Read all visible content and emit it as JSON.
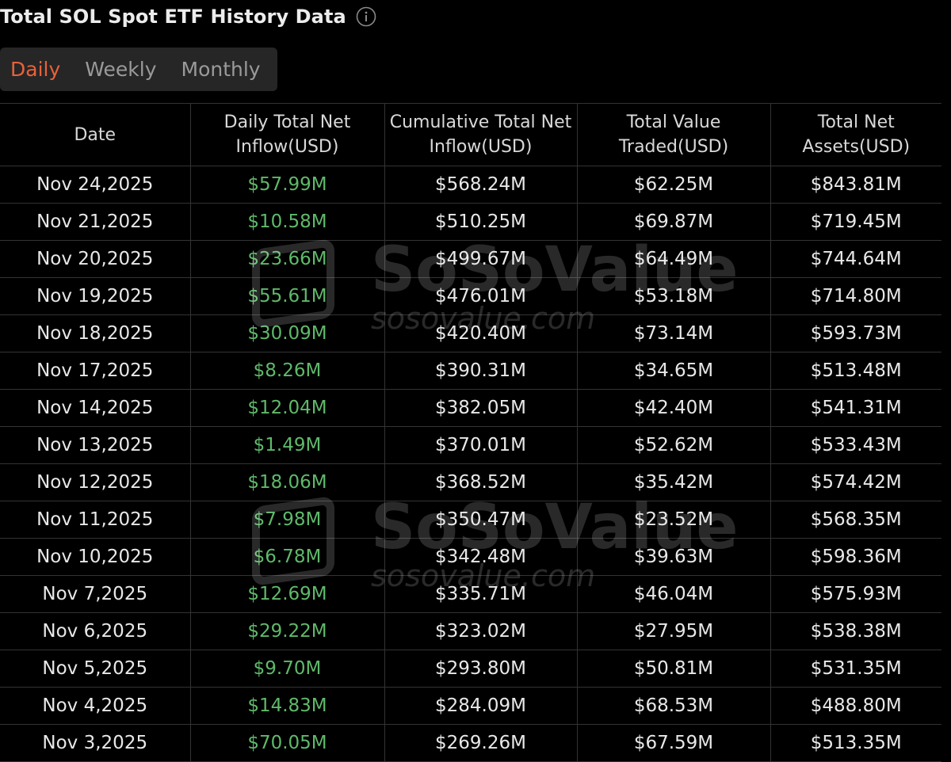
{
  "header": {
    "title": "Total SOL Spot ETF History Data"
  },
  "tabs": [
    {
      "label": "Daily",
      "active": true
    },
    {
      "label": "Weekly",
      "active": false
    },
    {
      "label": "Monthly",
      "active": false
    }
  ],
  "table": {
    "columns": [
      {
        "line1": "Date",
        "line2": ""
      },
      {
        "line1": "Daily Total Net",
        "line2": "Inflow(USD)"
      },
      {
        "line1": "Cumulative Total Net",
        "line2": "Inflow(USD)"
      },
      {
        "line1": "Total Value",
        "line2": "Traded(USD)"
      },
      {
        "line1": "Total Net",
        "line2": "Assets(USD)"
      }
    ],
    "rows": [
      [
        "Nov 24,2025",
        "$57.99M",
        "$568.24M",
        "$62.25M",
        "$843.81M"
      ],
      [
        "Nov 21,2025",
        "$10.58M",
        "$510.25M",
        "$69.87M",
        "$719.45M"
      ],
      [
        "Nov 20,2025",
        "$23.66M",
        "$499.67M",
        "$64.49M",
        "$744.64M"
      ],
      [
        "Nov 19,2025",
        "$55.61M",
        "$476.01M",
        "$53.18M",
        "$714.80M"
      ],
      [
        "Nov 18,2025",
        "$30.09M",
        "$420.40M",
        "$73.14M",
        "$593.73M"
      ],
      [
        "Nov 17,2025",
        "$8.26M",
        "$390.31M",
        "$34.65M",
        "$513.48M"
      ],
      [
        "Nov 14,2025",
        "$12.04M",
        "$382.05M",
        "$42.40M",
        "$541.31M"
      ],
      [
        "Nov 13,2025",
        "$1.49M",
        "$370.01M",
        "$52.62M",
        "$533.43M"
      ],
      [
        "Nov 12,2025",
        "$18.06M",
        "$368.52M",
        "$35.42M",
        "$574.42M"
      ],
      [
        "Nov 11,2025",
        "$7.98M",
        "$350.47M",
        "$23.52M",
        "$568.35M"
      ],
      [
        "Nov 10,2025",
        "$6.78M",
        "$342.48M",
        "$39.63M",
        "$598.36M"
      ],
      [
        "Nov 7,2025",
        "$12.69M",
        "$335.71M",
        "$46.04M",
        "$575.93M"
      ],
      [
        "Nov 6,2025",
        "$29.22M",
        "$323.02M",
        "$27.95M",
        "$538.38M"
      ],
      [
        "Nov 5,2025",
        "$9.70M",
        "$293.80M",
        "$50.81M",
        "$531.35M"
      ],
      [
        "Nov 4,2025",
        "$14.83M",
        "$284.09M",
        "$68.53M",
        "$488.80M"
      ],
      [
        "Nov 3,2025",
        "$70.05M",
        "$269.26M",
        "$67.59M",
        "$513.35M"
      ]
    ]
  },
  "watermark": {
    "brand": "SoSoValue",
    "url": "sosovalue.com"
  },
  "colors": {
    "positive": "#5fb96a",
    "active_tab": "#e8623a",
    "background": "#000000"
  },
  "icons": {
    "info": "info-circle-icon"
  }
}
